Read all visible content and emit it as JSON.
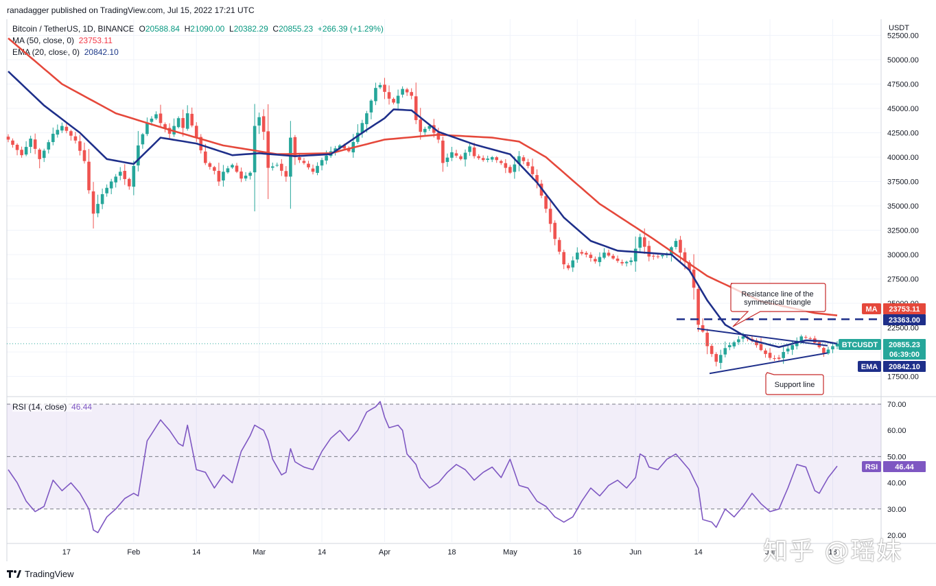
{
  "header": {
    "published": "ranadagger published on TradingView.com, Jul 15, 2022 17:21 UTC"
  },
  "legend": {
    "symbol": "Bitcoin / TetherUS, 1D, BINANCE",
    "open_label": "O",
    "open": "20588.84",
    "high_label": "H",
    "high": "21090.00",
    "low_label": "L",
    "low": "20382.29",
    "close_label": "C",
    "close": "20855.23",
    "change": "+266.39 (+1.29%)",
    "ma_label": "MA (50, close, 0)",
    "ma_value": "23753.11",
    "ema_label": "EMA (20, close, 0)",
    "ema_value": "20842.10",
    "rsi_label": "RSI (14, close)",
    "rsi_value": "46.44"
  },
  "axis": {
    "currency": "USDT"
  },
  "colors": {
    "up": "#26a69a",
    "down": "#ef5350",
    "ma": "#e5483b",
    "ema": "#1e2f8a",
    "rsi": "#7e57c2",
    "annotation": "#c62828"
  },
  "annotations": {
    "resistance": "Resistance line of the\nsymmetrical triangle",
    "support": "Support line"
  },
  "badges": {
    "ma": {
      "label": "MA",
      "value": "23753.11"
    },
    "level": {
      "value": "23363.00"
    },
    "btc": {
      "label": "BTCUSDT",
      "value": "20855.23",
      "timer": "06:39:00"
    },
    "ema": {
      "label": "EMA",
      "value": "20842.10"
    },
    "rsi": {
      "label": "RSI",
      "value": "46.44"
    }
  },
  "footer": {
    "brand": "TradingView"
  },
  "watermark": "知乎 @瑶妹",
  "chart_data": {
    "type": "candlestick",
    "price_axis": {
      "ticks": [
        17500,
        20000,
        22500,
        25000,
        27500,
        30000,
        32500,
        35000,
        37500,
        40000,
        42500,
        45000,
        47500,
        50000,
        52500
      ],
      "labels": [
        "17500.00",
        "20000.00",
        "22500.00",
        "25000.00",
        "27500.00",
        "30000.00",
        "32500.00",
        "35000.00",
        "37500.00",
        "40000.00",
        "42500.00",
        "45000.00",
        "47500.00",
        "50000.00",
        "52500.00"
      ]
    },
    "rsi_axis": {
      "ticks": [
        20,
        30,
        40,
        50,
        60,
        70
      ],
      "labels": [
        "20.00",
        "30.00",
        "40.00",
        "50.00",
        "60.00",
        "70.00"
      ],
      "bands": [
        30,
        50,
        70
      ]
    },
    "x_labels": [
      "17",
      "Feb",
      "14",
      "Mar",
      "14",
      "Apr",
      "18",
      "May",
      "16",
      "Jun",
      "14",
      "Jul",
      "18"
    ],
    "x_label_index": [
      13,
      28,
      42,
      56,
      70,
      84,
      99,
      112,
      127,
      140,
      154,
      170,
      184
    ],
    "horizontal_level": 23363,
    "price_anchors": [
      [
        0,
        41800
      ],
      [
        3,
        40200
      ],
      [
        5,
        41900
      ],
      [
        7,
        39800
      ],
      [
        10,
        42400
      ],
      [
        12,
        43200
      ],
      [
        15,
        41700
      ],
      [
        17,
        39600
      ],
      [
        18,
        36600
      ],
      [
        19,
        34200
      ],
      [
        21,
        36200
      ],
      [
        23,
        37500
      ],
      [
        25,
        38500
      ],
      [
        27,
        37000
      ],
      [
        29,
        41200
      ],
      [
        31,
        43500
      ],
      [
        33,
        44400
      ],
      [
        34,
        43500
      ],
      [
        36,
        42400
      ],
      [
        38,
        44000
      ],
      [
        39,
        43000
      ],
      [
        40,
        44500
      ],
      [
        42,
        42000
      ],
      [
        44,
        39400
      ],
      [
        46,
        38600
      ],
      [
        47,
        37500
      ],
      [
        48,
        38500
      ],
      [
        50,
        39200
      ],
      [
        52,
        37800
      ],
      [
        54,
        38400
      ],
      [
        55,
        43200
      ],
      [
        56,
        44100
      ],
      [
        57,
        42600
      ],
      [
        58,
        38900
      ],
      [
        60,
        39200
      ],
      [
        62,
        38000
      ],
      [
        63,
        42000
      ],
      [
        64,
        40000
      ],
      [
        66,
        39400
      ],
      [
        68,
        38500
      ],
      [
        70,
        39700
      ],
      [
        72,
        40600
      ],
      [
        74,
        41200
      ],
      [
        76,
        40600
      ],
      [
        78,
        42500
      ],
      [
        80,
        44500
      ],
      [
        82,
        47100
      ],
      [
        83,
        47400
      ],
      [
        85,
        46000
      ],
      [
        86,
        45600
      ],
      [
        88,
        47000
      ],
      [
        90,
        46300
      ],
      [
        91,
        43800
      ],
      [
        92,
        42600
      ],
      [
        94,
        43200
      ],
      [
        96,
        41800
      ],
      [
        97,
        39400
      ],
      [
        99,
        40500
      ],
      [
        101,
        39800
      ],
      [
        103,
        41100
      ],
      [
        104,
        40100
      ],
      [
        106,
        39700
      ],
      [
        108,
        40000
      ],
      [
        110,
        39400
      ],
      [
        112,
        38400
      ],
      [
        114,
        40100
      ],
      [
        116,
        39100
      ],
      [
        118,
        37400
      ],
      [
        120,
        34700
      ],
      [
        122,
        31600
      ],
      [
        124,
        29000
      ],
      [
        125,
        28600
      ],
      [
        127,
        30200
      ],
      [
        129,
        30000
      ],
      [
        131,
        29300
      ],
      [
        133,
        30200
      ],
      [
        135,
        29600
      ],
      [
        137,
        29100
      ],
      [
        139,
        29400
      ],
      [
        141,
        31800
      ],
      [
        143,
        29800
      ],
      [
        145,
        29800
      ],
      [
        147,
        30100
      ],
      [
        149,
        31400
      ],
      [
        150,
        30200
      ],
      [
        152,
        28400
      ],
      [
        153,
        26600
      ],
      [
        154,
        22800
      ],
      [
        155,
        22100
      ],
      [
        156,
        20600
      ],
      [
        158,
        19000
      ],
      [
        160,
        20400
      ],
      [
        162,
        21000
      ],
      [
        164,
        21600
      ],
      [
        166,
        21200
      ],
      [
        168,
        20200
      ],
      [
        170,
        19400
      ],
      [
        172,
        19300
      ],
      [
        173,
        20000
      ],
      [
        175,
        20700
      ],
      [
        177,
        21600
      ],
      [
        179,
        21400
      ],
      [
        181,
        20500
      ],
      [
        182,
        19900
      ],
      [
        184,
        20600
      ],
      [
        185,
        20860
      ]
    ],
    "ma_anchors": [
      [
        0,
        52200
      ],
      [
        12,
        47500
      ],
      [
        24,
        44500
      ],
      [
        36,
        42800
      ],
      [
        48,
        41200
      ],
      [
        60,
        40300
      ],
      [
        72,
        40400
      ],
      [
        84,
        41800
      ],
      [
        96,
        42300
      ],
      [
        108,
        42000
      ],
      [
        114,
        41600
      ],
      [
        120,
        40000
      ],
      [
        132,
        35200
      ],
      [
        144,
        31600
      ],
      [
        156,
        27800
      ],
      [
        168,
        25200
      ],
      [
        180,
        24000
      ],
      [
        185,
        23753
      ]
    ],
    "ema_anchors": [
      [
        0,
        48800
      ],
      [
        8,
        45300
      ],
      [
        16,
        42500
      ],
      [
        22,
        39800
      ],
      [
        28,
        39300
      ],
      [
        34,
        42000
      ],
      [
        42,
        41400
      ],
      [
        50,
        40200
      ],
      [
        56,
        40400
      ],
      [
        64,
        40100
      ],
      [
        72,
        40300
      ],
      [
        80,
        42800
      ],
      [
        84,
        44000
      ],
      [
        86,
        44900
      ],
      [
        90,
        44800
      ],
      [
        96,
        42600
      ],
      [
        104,
        41300
      ],
      [
        112,
        40300
      ],
      [
        118,
        37400
      ],
      [
        124,
        33800
      ],
      [
        130,
        31400
      ],
      [
        136,
        30400
      ],
      [
        142,
        30200
      ],
      [
        148,
        30000
      ],
      [
        152,
        28400
      ],
      [
        156,
        25300
      ],
      [
        160,
        22800
      ],
      [
        166,
        21200
      ],
      [
        172,
        20500
      ],
      [
        178,
        21200
      ],
      [
        182,
        21100
      ],
      [
        185,
        20842
      ]
    ],
    "rsi_anchors": [
      [
        0,
        45
      ],
      [
        2,
        40
      ],
      [
        4,
        33
      ],
      [
        6,
        29
      ],
      [
        8,
        31
      ],
      [
        10,
        41
      ],
      [
        12,
        37
      ],
      [
        14,
        40
      ],
      [
        16,
        36
      ],
      [
        18,
        30
      ],
      [
        19,
        22
      ],
      [
        20,
        21
      ],
      [
        22,
        27
      ],
      [
        24,
        30
      ],
      [
        26,
        34
      ],
      [
        28,
        36
      ],
      [
        29,
        35
      ],
      [
        31,
        56
      ],
      [
        34,
        64
      ],
      [
        36,
        60
      ],
      [
        38,
        55
      ],
      [
        39,
        54
      ],
      [
        40,
        62
      ],
      [
        42,
        45
      ],
      [
        44,
        44
      ],
      [
        46,
        38
      ],
      [
        48,
        43
      ],
      [
        50,
        40
      ],
      [
        52,
        52
      ],
      [
        54,
        58
      ],
      [
        55,
        62
      ],
      [
        57,
        60
      ],
      [
        58,
        56
      ],
      [
        59,
        49
      ],
      [
        61,
        43
      ],
      [
        62,
        44
      ],
      [
        63,
        53
      ],
      [
        64,
        48
      ],
      [
        66,
        46
      ],
      [
        68,
        45
      ],
      [
        70,
        52
      ],
      [
        72,
        57
      ],
      [
        74,
        60
      ],
      [
        76,
        56
      ],
      [
        78,
        60
      ],
      [
        80,
        67
      ],
      [
        82,
        69
      ],
      [
        83,
        71
      ],
      [
        84,
        65
      ],
      [
        85,
        61
      ],
      [
        87,
        62
      ],
      [
        88,
        60
      ],
      [
        89,
        51
      ],
      [
        91,
        47
      ],
      [
        92,
        42
      ],
      [
        94,
        38
      ],
      [
        96,
        40
      ],
      [
        98,
        44
      ],
      [
        100,
        47
      ],
      [
        102,
        45
      ],
      [
        104,
        41
      ],
      [
        106,
        44
      ],
      [
        108,
        46
      ],
      [
        110,
        42
      ],
      [
        112,
        49
      ],
      [
        114,
        39
      ],
      [
        116,
        38
      ],
      [
        118,
        33
      ],
      [
        120,
        31
      ],
      [
        122,
        27
      ],
      [
        124,
        25
      ],
      [
        126,
        27
      ],
      [
        128,
        33
      ],
      [
        130,
        38
      ],
      [
        132,
        35
      ],
      [
        134,
        39
      ],
      [
        136,
        41
      ],
      [
        138,
        38
      ],
      [
        140,
        42
      ],
      [
        141,
        51
      ],
      [
        142,
        50
      ],
      [
        143,
        46
      ],
      [
        145,
        45
      ],
      [
        147,
        49
      ],
      [
        149,
        51
      ],
      [
        150,
        49
      ],
      [
        152,
        45
      ],
      [
        154,
        38
      ],
      [
        155,
        26
      ],
      [
        157,
        25
      ],
      [
        158,
        23
      ],
      [
        160,
        30
      ],
      [
        162,
        27
      ],
      [
        164,
        31
      ],
      [
        166,
        36
      ],
      [
        168,
        32
      ],
      [
        170,
        29
      ],
      [
        172,
        30
      ],
      [
        174,
        38
      ],
      [
        176,
        47
      ],
      [
        178,
        46
      ],
      [
        180,
        37
      ],
      [
        181,
        36
      ],
      [
        183,
        42
      ],
      [
        185,
        46.4
      ]
    ]
  }
}
